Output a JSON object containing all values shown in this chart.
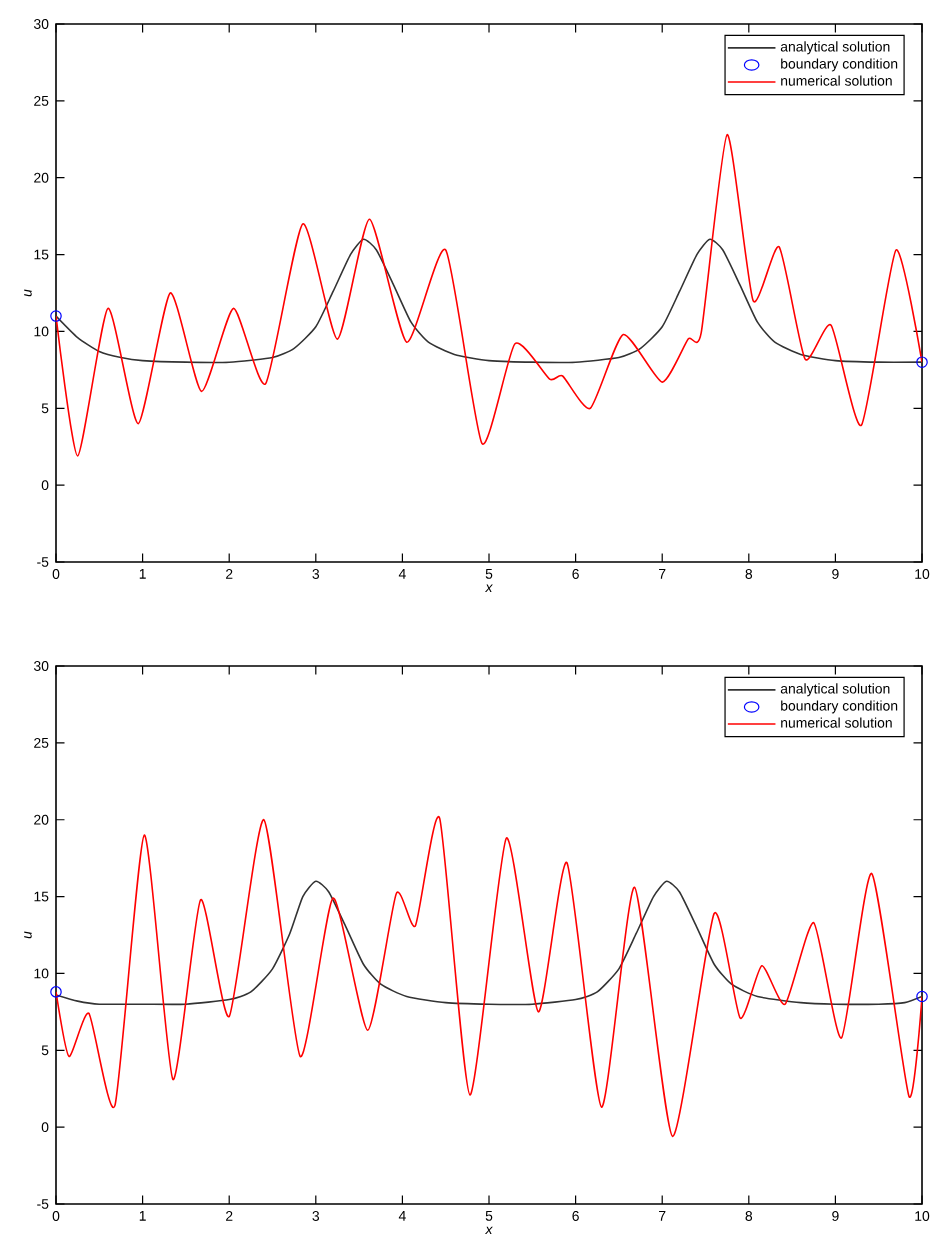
{
  "chart_data": [
    {
      "type": "line",
      "xlabel": "x",
      "ylabel": "u",
      "xlim": [
        0,
        10
      ],
      "ylim": [
        -5,
        30
      ],
      "xticks": [
        0,
        1,
        2,
        3,
        4,
        5,
        6,
        7,
        8,
        9,
        10
      ],
      "yticks": [
        -5,
        0,
        5,
        10,
        15,
        20,
        25,
        30
      ],
      "legend": "top right",
      "series": [
        {
          "name": "analytical solution",
          "color": "#333333",
          "type": "line",
          "marker": "none",
          "line_style": "solid",
          "x": [
            0,
            0.25,
            0.5,
            0.75,
            1,
            1.5,
            2,
            2.5,
            2.75,
            3,
            3.2,
            3.4,
            3.55,
            3.7,
            3.9,
            4.1,
            4.3,
            4.6,
            5,
            5.5,
            6,
            6.5,
            6.75,
            7,
            7.2,
            7.4,
            7.55,
            7.7,
            7.9,
            8.1,
            8.3,
            8.6,
            9,
            9.5,
            10
          ],
          "values": [
            11,
            9.6,
            8.7,
            8.3,
            8.1,
            8,
            8,
            8.3,
            8.9,
            10.3,
            12.6,
            15,
            16,
            15.3,
            13,
            10.6,
            9.3,
            8.5,
            8.1,
            8,
            8,
            8.3,
            8.9,
            10.3,
            12.6,
            15,
            16,
            15.3,
            13,
            10.6,
            9.3,
            8.5,
            8.1,
            8,
            8
          ]
        },
        {
          "name": "boundary condition",
          "color": "#0000ff",
          "type": "scatter",
          "marker": "circle",
          "x": [
            0,
            10
          ],
          "values": [
            11,
            8
          ]
        },
        {
          "name": "numerical solution",
          "color": "#ff0000",
          "type": "line",
          "marker": "none",
          "line_style": "solid",
          "x": [
            0,
            0.25,
            0.6,
            0.95,
            1.32,
            1.68,
            2.05,
            2.42,
            2.85,
            3.25,
            3.62,
            4.05,
            4.5,
            4.92,
            5.3,
            5.7,
            5.85,
            6.17,
            6.55,
            7,
            7.3,
            7.45,
            7.75,
            8.05,
            8.35,
            8.65,
            8.95,
            9.3,
            9.7,
            10
          ],
          "values": [
            11,
            1.9,
            11.5,
            4,
            12.5,
            6.1,
            11.5,
            6.6,
            17,
            9.5,
            17.3,
            9.3,
            15.3,
            2.7,
            9.2,
            6.9,
            7.1,
            5,
            9.8,
            6.7,
            9.5,
            9.9,
            22.8,
            12,
            15.5,
            8.2,
            10.4,
            3.9,
            15.3,
            8
          ]
        }
      ]
    },
    {
      "type": "line",
      "xlabel": "x",
      "ylabel": "u",
      "xlim": [
        0,
        10
      ],
      "ylim": [
        -5,
        30
      ],
      "xticks": [
        0,
        1,
        2,
        3,
        4,
        5,
        6,
        7,
        8,
        9,
        10
      ],
      "yticks": [
        -5,
        0,
        5,
        10,
        15,
        20,
        25,
        30
      ],
      "legend": "top right",
      "series": [
        {
          "name": "analytical solution",
          "color": "#333333",
          "type": "line",
          "marker": "none",
          "line_style": "solid",
          "x": [
            0,
            0.25,
            0.5,
            1,
            1.5,
            2,
            2.25,
            2.5,
            2.7,
            2.85,
            3,
            3.15,
            3.35,
            3.55,
            3.75,
            4.05,
            4.5,
            5,
            5.5,
            6,
            6.25,
            6.5,
            6.7,
            6.9,
            7.05,
            7.2,
            7.4,
            7.6,
            7.8,
            8.1,
            8.6,
            9,
            9.5,
            9.8,
            10
          ],
          "values": [
            8.6,
            8.2,
            8,
            8,
            8,
            8.3,
            8.8,
            10.3,
            12.6,
            15,
            16,
            15.3,
            13,
            10.6,
            9.3,
            8.5,
            8.1,
            8,
            8,
            8.3,
            8.8,
            10.3,
            12.6,
            15,
            16,
            15.3,
            13,
            10.6,
            9.3,
            8.5,
            8.1,
            8,
            8,
            8.1,
            8.5
          ]
        },
        {
          "name": "boundary condition",
          "color": "#0000ff",
          "type": "scatter",
          "marker": "circle",
          "x": [
            0,
            10
          ],
          "values": [
            8.8,
            8.5
          ]
        },
        {
          "name": "numerical solution",
          "color": "#ff0000",
          "type": "line",
          "marker": "none",
          "line_style": "solid",
          "x": [
            0,
            0.15,
            0.38,
            0.68,
            1.02,
            1.35,
            1.67,
            2,
            2.4,
            2.82,
            3.2,
            3.6,
            3.93,
            4.15,
            4.43,
            4.78,
            5.2,
            5.57,
            5.9,
            6.3,
            6.68,
            7.12,
            7.6,
            7.9,
            8.15,
            8.42,
            8.75,
            9.07,
            9.42,
            9.85,
            10
          ],
          "values": [
            8.8,
            4.6,
            7.4,
            1.4,
            19,
            3.1,
            14.8,
            7.2,
            20,
            4.6,
            14.9,
            6.3,
            15.2,
            13.1,
            20.1,
            2.1,
            18.8,
            7.5,
            17.2,
            1.3,
            15.6,
            -0.6,
            13.9,
            7.1,
            10.5,
            8,
            13.3,
            5.8,
            16.5,
            2,
            8.5
          ]
        }
      ]
    }
  ]
}
